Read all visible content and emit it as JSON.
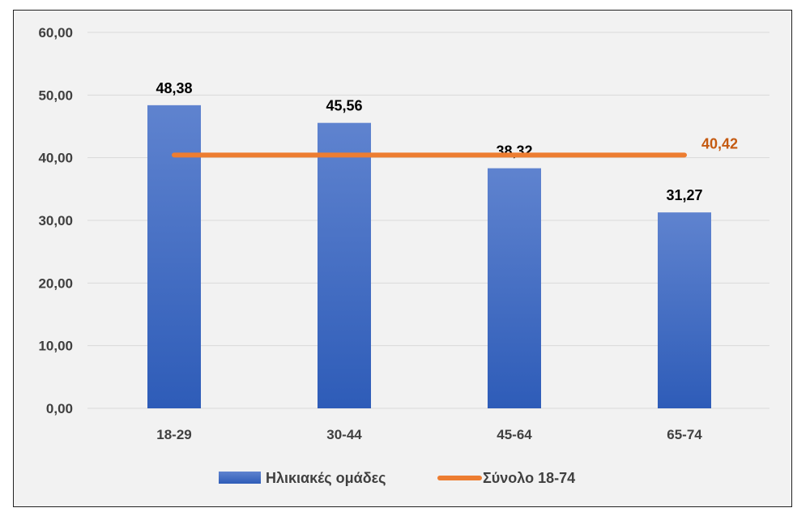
{
  "chart_data": {
    "type": "bar",
    "title": "",
    "xlabel": "",
    "ylabel": "",
    "categories": [
      "18-29",
      "30-44",
      "45-64",
      "65-74"
    ],
    "series": [
      {
        "name": "Ηλικιακές ομάδες",
        "type": "bar",
        "values": [
          48.38,
          45.56,
          38.32,
          31.27
        ],
        "labels": [
          "48,38",
          "45,56",
          "38,32",
          "31,27"
        ],
        "color": "#4472c4"
      },
      {
        "name": "Σύνολο 18-74",
        "type": "line",
        "value": 40.42,
        "label": "40,42",
        "color": "#ed7d31"
      }
    ],
    "ylim": [
      0,
      60
    ],
    "yticks": [
      "0,00",
      "10,00",
      "20,00",
      "30,00",
      "40,00",
      "50,00",
      "60,00"
    ],
    "grid": true,
    "legend": "bottom"
  }
}
